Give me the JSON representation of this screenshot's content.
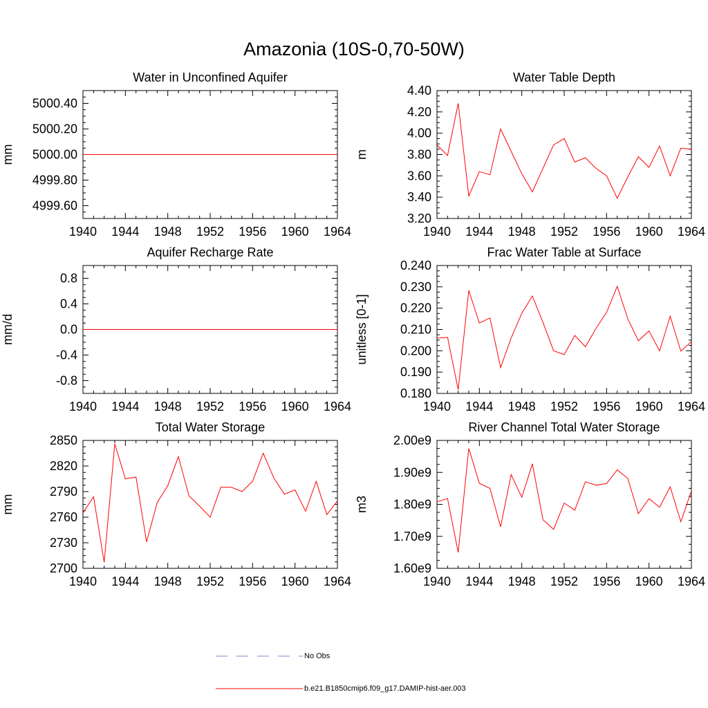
{
  "title": "Amazonia (10S-0,70-50W)",
  "legend": {
    "entries": [
      {
        "label": "No Obs",
        "color": "#7f86c8",
        "style": "dashed"
      },
      {
        "label": "b.e21.B1850cmip6.f09_g17.DAMIP-hist-aer.003",
        "color": "#ff0000",
        "style": "solid"
      }
    ]
  },
  "chart_data": [
    {
      "type": "line",
      "title": "Water in Unconfined Aquifer",
      "ylabel": "mm",
      "xlim": [
        1940,
        1964
      ],
      "ylim": [
        4999.5,
        5000.5
      ],
      "xticks": [
        1940,
        1944,
        1948,
        1952,
        1956,
        1960,
        1964
      ],
      "yticks": [
        4999.6,
        4999.8,
        5000.0,
        5000.2,
        5000.4
      ],
      "ytick_labels": [
        "4999.60",
        "4999.80",
        "5000.00",
        "5000.20",
        "5000.40"
      ],
      "series": [
        {
          "color": "#ff0000",
          "x": [
            1940,
            1964
          ],
          "values": [
            5000.0,
            5000.0
          ]
        }
      ]
    },
    {
      "type": "line",
      "title": "Water Table Depth",
      "ylabel": "m",
      "xlim": [
        1940,
        1964
      ],
      "ylim": [
        3.2,
        4.4
      ],
      "xticks": [
        1940,
        1944,
        1948,
        1952,
        1956,
        1960,
        1964
      ],
      "yticks": [
        3.2,
        3.4,
        3.6,
        3.8,
        4.0,
        4.2,
        4.4
      ],
      "ytick_labels": [
        "3.20",
        "3.40",
        "3.60",
        "3.80",
        "4.00",
        "4.20",
        "4.40"
      ],
      "series": [
        {
          "color": "#ff0000",
          "x": [
            1940,
            1941,
            1942,
            1943,
            1944,
            1945,
            1946,
            1947,
            1948,
            1949,
            1950,
            1951,
            1952,
            1953,
            1954,
            1955,
            1956,
            1957,
            1958,
            1959,
            1960,
            1961,
            1962,
            1963,
            1964
          ],
          "values": [
            3.89,
            3.79,
            4.28,
            3.41,
            3.64,
            3.61,
            4.04,
            3.83,
            3.62,
            3.45,
            3.67,
            3.89,
            3.95,
            3.73,
            3.77,
            3.67,
            3.6,
            3.39,
            3.59,
            3.78,
            3.68,
            3.88,
            3.6,
            3.86,
            3.85
          ]
        }
      ]
    },
    {
      "type": "line",
      "title": "Aquifer Recharge Rate",
      "ylabel": "mm/d",
      "xlim": [
        1940,
        1964
      ],
      "ylim": [
        -1.0,
        1.0
      ],
      "xticks": [
        1940,
        1944,
        1948,
        1952,
        1956,
        1960,
        1964
      ],
      "yticks": [
        -0.8,
        -0.4,
        0.0,
        0.4,
        0.8
      ],
      "ytick_labels": [
        "-0.8",
        "-0.4",
        "0.0",
        "0.4",
        "0.8"
      ],
      "series": [
        {
          "color": "#ff0000",
          "x": [
            1940,
            1964
          ],
          "values": [
            0.0,
            0.0
          ]
        }
      ]
    },
    {
      "type": "line",
      "title": "Frac Water Table at Surface",
      "ylabel": "unitless [0-1]",
      "xlim": [
        1940,
        1964
      ],
      "ylim": [
        0.18,
        0.24
      ],
      "xticks": [
        1940,
        1944,
        1948,
        1952,
        1956,
        1960,
        1964
      ],
      "yticks": [
        0.18,
        0.19,
        0.2,
        0.21,
        0.22,
        0.23,
        0.24
      ],
      "ytick_labels": [
        "0.180",
        "0.190",
        "0.200",
        "0.210",
        "0.220",
        "0.230",
        "0.240"
      ],
      "series": [
        {
          "color": "#ff0000",
          "x": [
            1940,
            1941,
            1942,
            1943,
            1944,
            1945,
            1946,
            1947,
            1948,
            1949,
            1950,
            1951,
            1952,
            1953,
            1954,
            1955,
            1956,
            1957,
            1958,
            1959,
            1960,
            1961,
            1962,
            1963,
            1964
          ],
          "values": [
            0.2059,
            0.2063,
            0.1818,
            0.2283,
            0.213,
            0.2154,
            0.1921,
            0.206,
            0.2176,
            0.2257,
            0.2133,
            0.2,
            0.1982,
            0.2072,
            0.2019,
            0.2105,
            0.218,
            0.2302,
            0.215,
            0.2047,
            0.2093,
            0.1999,
            0.2162,
            0.1998,
            0.2043
          ]
        }
      ]
    },
    {
      "type": "line",
      "title": "Total Water Storage",
      "ylabel": "mm",
      "xlim": [
        1940,
        1964
      ],
      "ylim": [
        2700,
        2850
      ],
      "xticks": [
        1940,
        1944,
        1948,
        1952,
        1956,
        1960,
        1964
      ],
      "yticks": [
        2700,
        2730,
        2760,
        2790,
        2820,
        2850
      ],
      "ytick_labels": [
        "2700",
        "2730",
        "2760",
        "2790",
        "2820",
        "2850"
      ],
      "series": [
        {
          "color": "#ff0000",
          "x": [
            1940,
            1941,
            1942,
            1943,
            1944,
            1945,
            1946,
            1947,
            1948,
            1949,
            1950,
            1951,
            1952,
            1953,
            1954,
            1955,
            1956,
            1957,
            1958,
            1959,
            1960,
            1961,
            1962,
            1963,
            1964
          ],
          "values": [
            2765,
            2784,
            2707,
            2846,
            2805,
            2807,
            2731,
            2777,
            2797,
            2831,
            2785,
            2773,
            2760,
            2795,
            2795,
            2790,
            2802,
            2835,
            2806,
            2787,
            2792,
            2767,
            2802,
            2763,
            2779
          ]
        }
      ]
    },
    {
      "type": "line",
      "title": "River Channel Total Water Storage",
      "ylabel": "m3",
      "xlim": [
        1940,
        1964
      ],
      "ylim": [
        1.6,
        2.0
      ],
      "yunit_note": "",
      "xticks": [
        1940,
        1944,
        1948,
        1952,
        1956,
        1960,
        1964
      ],
      "yticks": [
        1.6,
        1.7,
        1.8,
        1.9,
        2.0
      ],
      "ytick_labels": [
        "1.60e9",
        "1.70e9",
        "1.80e9",
        "1.90e9",
        "2.00e9"
      ],
      "series": [
        {
          "color": "#ff0000",
          "x": [
            1940,
            1941,
            1942,
            1943,
            1944,
            1945,
            1946,
            1947,
            1948,
            1949,
            1950,
            1951,
            1952,
            1953,
            1954,
            1955,
            1956,
            1957,
            1958,
            1959,
            1960,
            1961,
            1962,
            1963,
            1964
          ],
          "values": [
            1.808,
            1.818,
            1.65,
            1.975,
            1.866,
            1.85,
            1.73,
            1.893,
            1.822,
            1.927,
            1.752,
            1.722,
            1.804,
            1.782,
            1.871,
            1.86,
            1.865,
            1.908,
            1.881,
            1.771,
            1.818,
            1.791,
            1.855,
            1.746,
            1.842
          ]
        }
      ]
    }
  ]
}
